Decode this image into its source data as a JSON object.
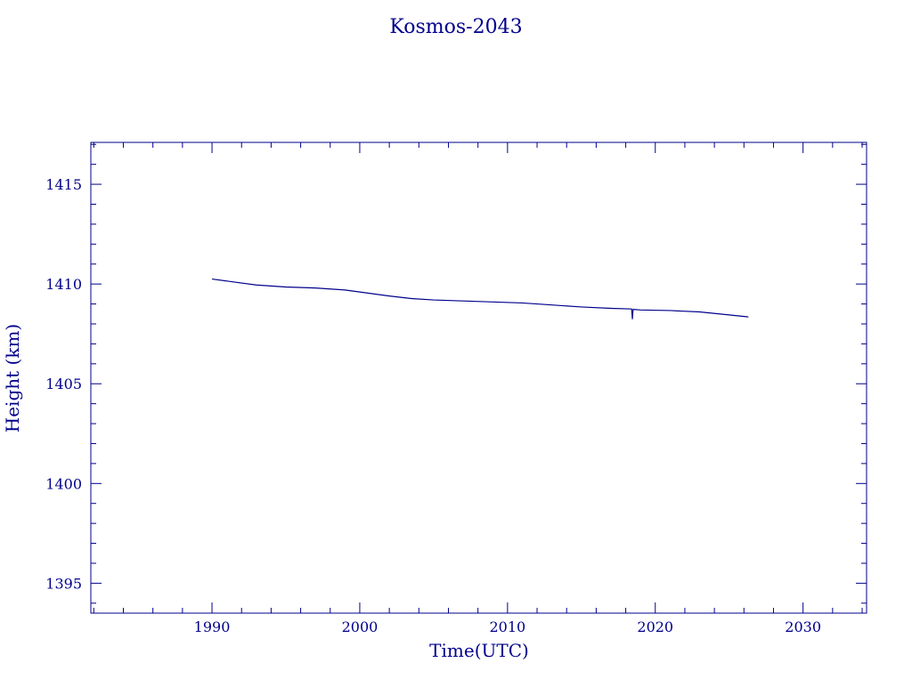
{
  "chart_data": {
    "type": "line",
    "title": "Kosmos-2043",
    "xlabel": "Time(UTC)",
    "ylabel": "Height (km)",
    "xlim": [
      1981.8,
      2034.3
    ],
    "ylim": [
      1393.5,
      1417.1
    ],
    "xticks": [
      1990,
      2000,
      2010,
      2020,
      2030
    ],
    "xtick_labels": [
      "1990",
      "2000",
      "2010",
      "2020",
      "2030"
    ],
    "x_minor_step": 2,
    "yticks": [
      1395,
      1400,
      1405,
      1410,
      1415
    ],
    "ytick_labels": [
      "1395",
      "1400",
      "1405",
      "1410",
      "1415"
    ],
    "y_minor_step": 1,
    "grid": false,
    "legend": "none",
    "color": "#00008b",
    "series": [
      {
        "x": [
          1990.0,
          1991.5,
          1993.0,
          1995.0,
          1997.0,
          1999.0,
          2000.5,
          2002.0,
          2003.5,
          2005.0,
          2007.0,
          2009.0,
          2011.0,
          2013.0,
          2015.0,
          2017.0,
          2018.4,
          2018.45,
          2018.5,
          2019.0,
          2021.0,
          2023.0,
          2025.0,
          2026.3
        ],
        "y": [
          1410.25,
          1410.1,
          1409.95,
          1409.85,
          1409.8,
          1409.7,
          1409.55,
          1409.4,
          1409.27,
          1409.2,
          1409.15,
          1409.1,
          1409.05,
          1408.95,
          1408.85,
          1408.78,
          1408.75,
          1408.25,
          1408.73,
          1408.7,
          1408.67,
          1408.6,
          1408.45,
          1408.35
        ]
      }
    ]
  }
}
